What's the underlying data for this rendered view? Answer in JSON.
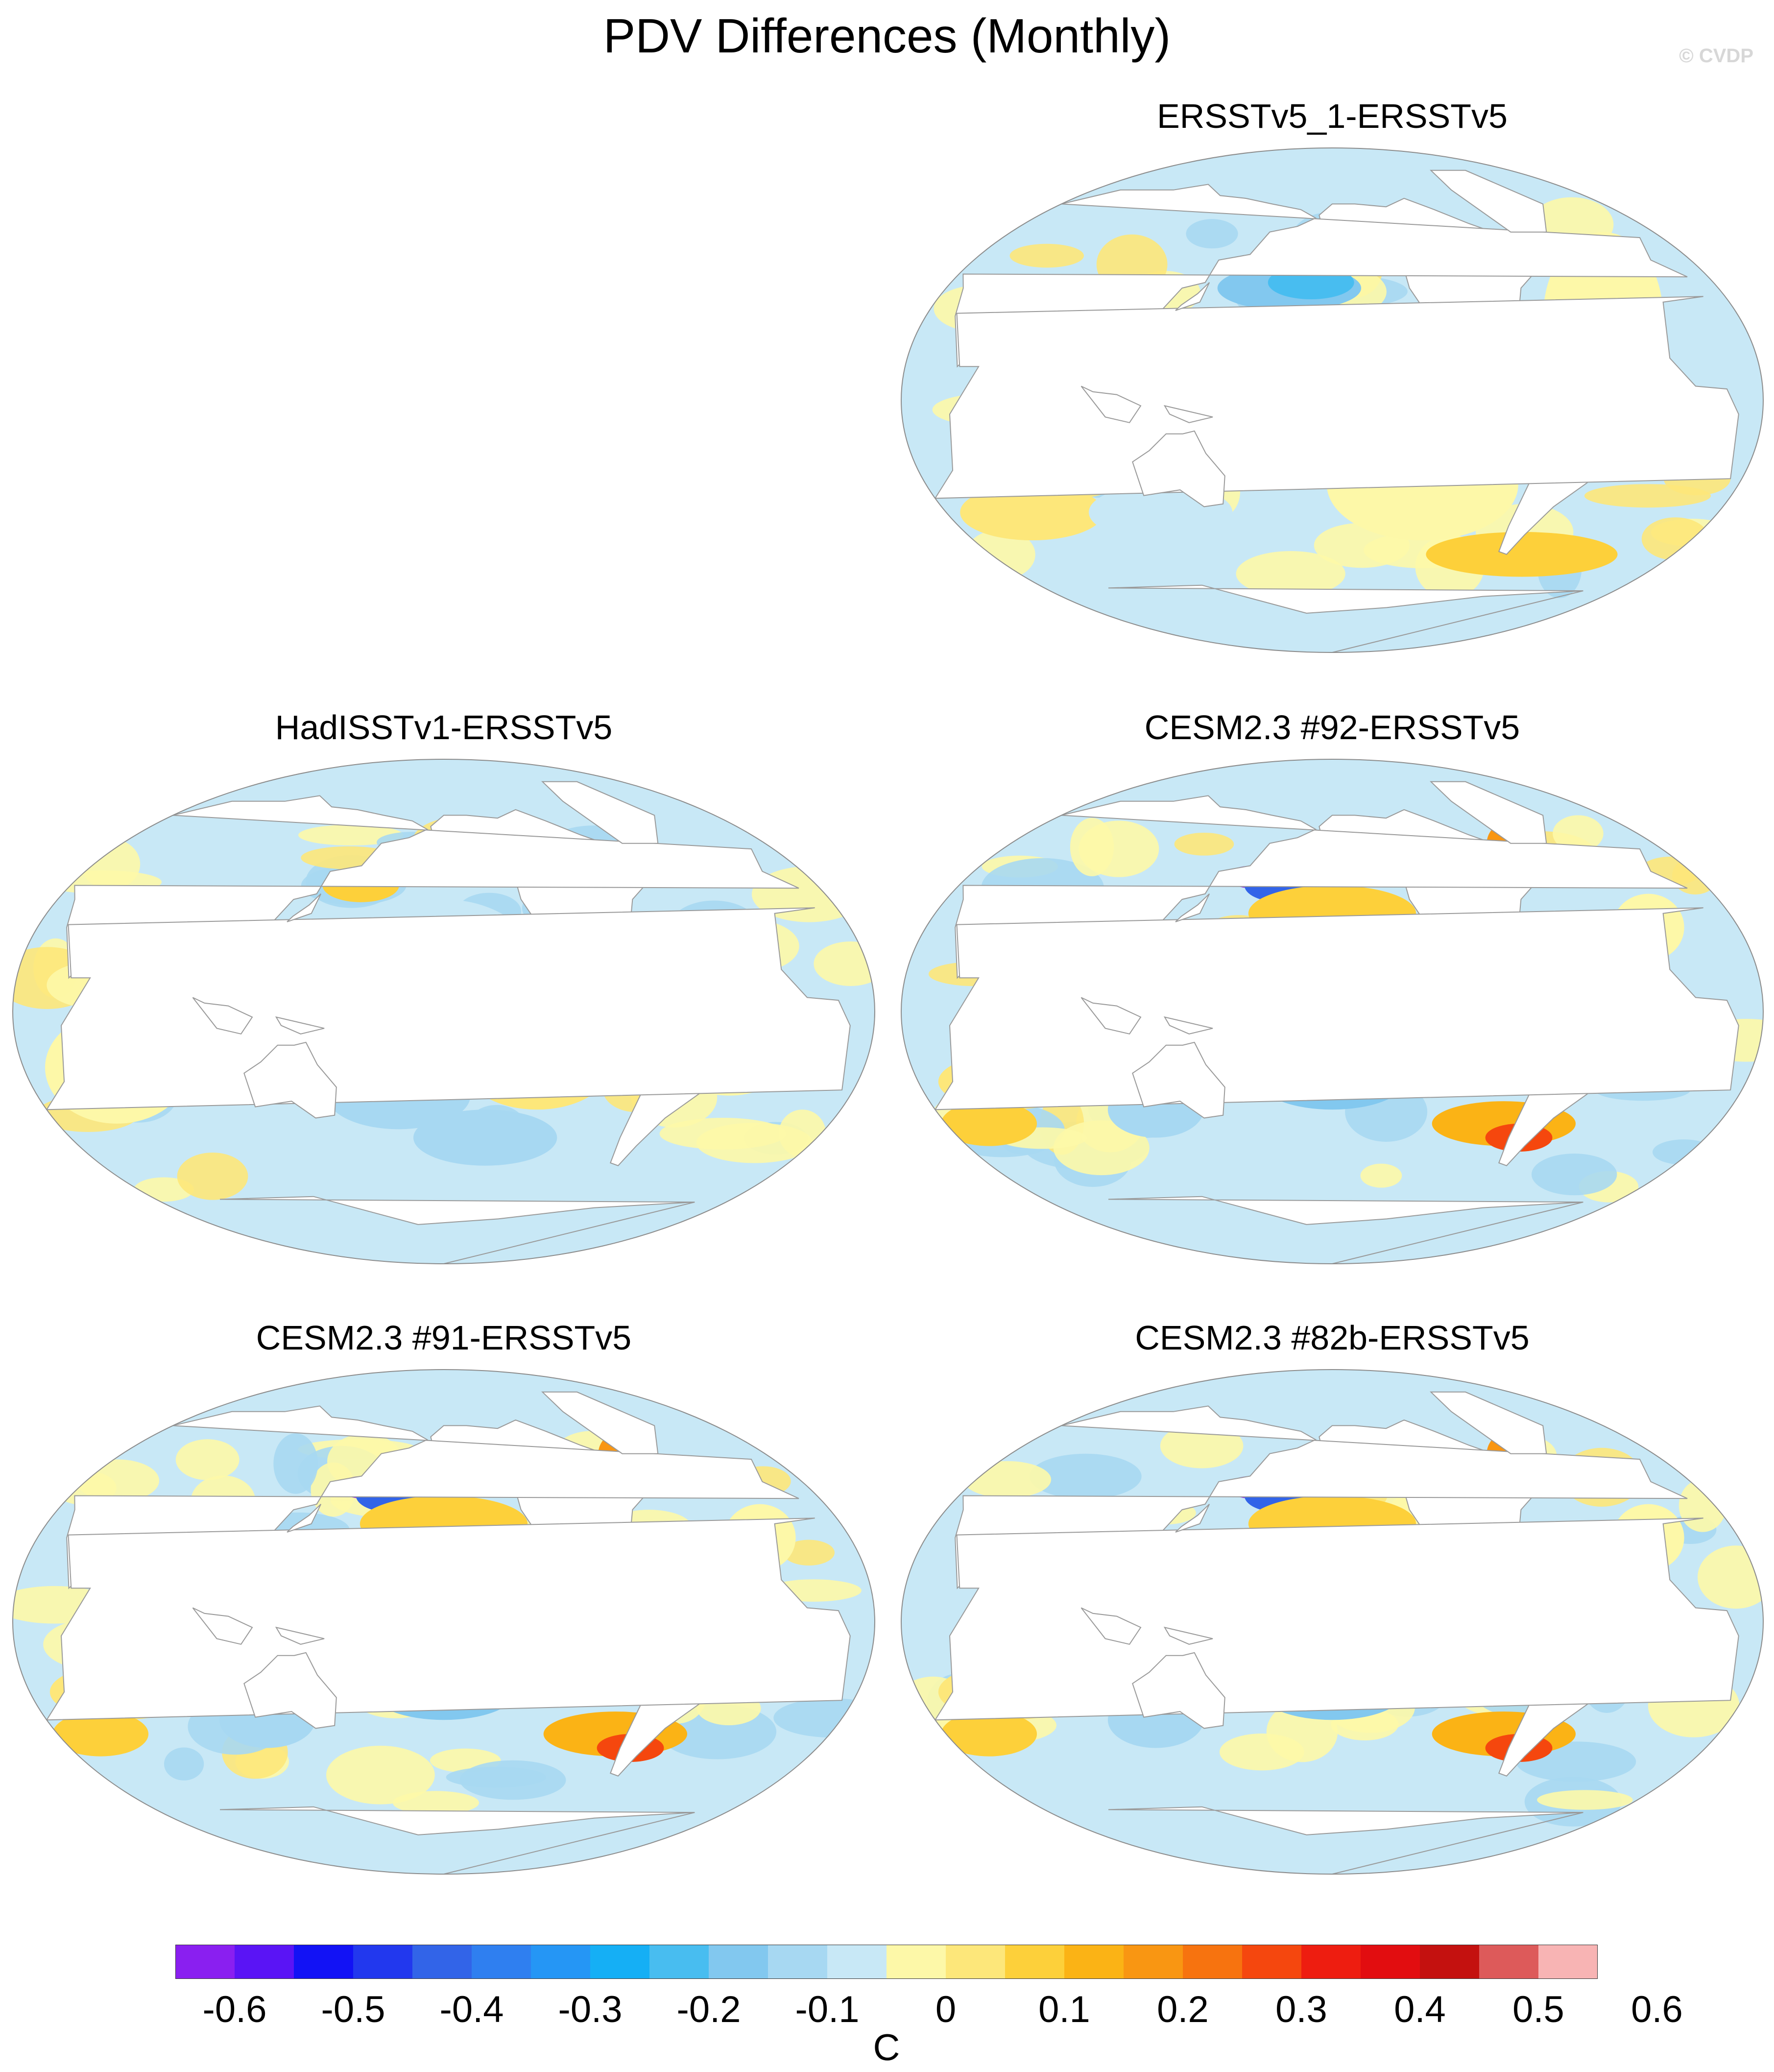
{
  "title": "PDV Differences (Monthly)",
  "copyright": "© CVDP",
  "panels": [
    {
      "title": "ERSSTv5_1-ERSSTv5",
      "slot": "top-right",
      "pattern": "weak"
    },
    {
      "title": "HadISSTv1-ERSSTv5",
      "slot": "middle-left",
      "pattern": "patchy"
    },
    {
      "title": "CESM2.3 #92-ERSSTv5",
      "slot": "middle-right",
      "pattern": "model"
    },
    {
      "title": "CESM2.3 #91-ERSSTv5",
      "slot": "bottom-left",
      "pattern": "model"
    },
    {
      "title": "CESM2.3 #82b-ERSSTv5",
      "slot": "bottom-right",
      "pattern": "model"
    }
  ],
  "colorbar": {
    "units": "C",
    "tick_labels": [
      "-0.6",
      "-0.5",
      "-0.4",
      "-0.3",
      "-0.2",
      "-0.1",
      "0",
      "0.1",
      "0.2",
      "0.3",
      "0.4",
      "0.5",
      "0.6"
    ],
    "colors": [
      "#8a1ff0",
      "#5a14f5",
      "#1212f5",
      "#2238ee",
      "#3264e8",
      "#2f7ff0",
      "#2596f5",
      "#15aff5",
      "#48bdf0",
      "#82c8ef",
      "#a7d8f2",
      "#c8e8f6",
      "#fdf8a8",
      "#fde77a",
      "#fdd03a",
      "#fbb315",
      "#f99612",
      "#f7730f",
      "#f5470e",
      "#ee1d10",
      "#e20d10",
      "#c4110f",
      "#dd5a5a",
      "#f8b4b4"
    ]
  }
}
